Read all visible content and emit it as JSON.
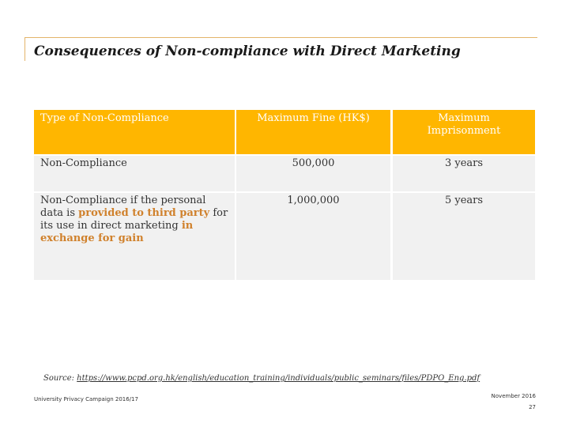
{
  "slide": {
    "title": "Consequences of Non-compliance with Direct Marketing"
  },
  "table": {
    "headers": [
      "Type of Non-Compliance",
      "Maximum Fine (HK$)",
      "Maximum Imprisonment"
    ],
    "rows": [
      {
        "type": "Non-Compliance",
        "fine": "500,000",
        "imprisonment": "3 years"
      },
      {
        "type_parts": [
          "Non-Compliance if the personal data is ",
          "provided to third party",
          " for its use in direct marketing ",
          "in exchange for gain"
        ],
        "fine": "1,000,000",
        "imprisonment": "5 years"
      }
    ]
  },
  "source": {
    "label": "Source: ",
    "url": "https://www.pcpd.org.hk/english/education_training/individuals/public_seminars/files/PDPO_Eng.pdf"
  },
  "footer": {
    "campaign": "University Privacy Campaign 2016/17",
    "date": "November 2016",
    "page": "27"
  },
  "colors": {
    "accent": "#ffb600",
    "highlight": "#d0812c",
    "row_bg": "#f1f1f1"
  }
}
